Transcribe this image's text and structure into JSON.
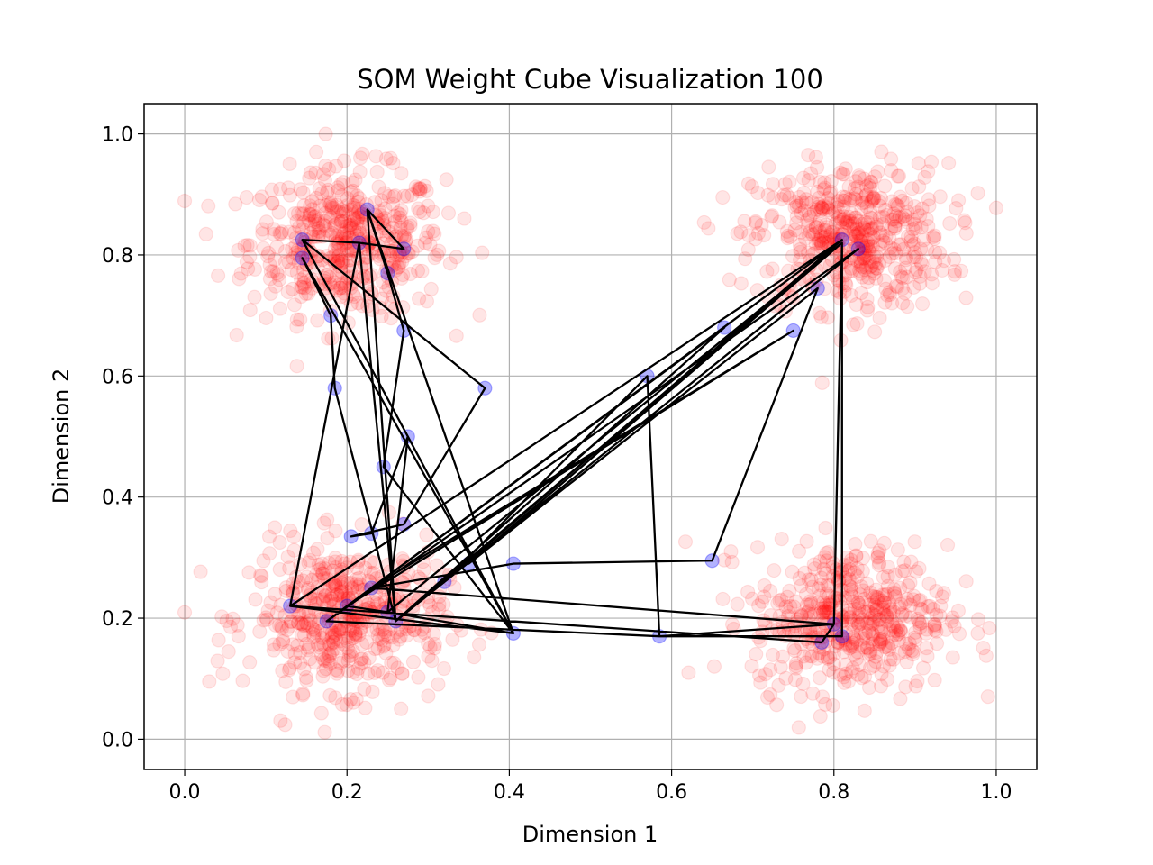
{
  "chart_data": {
    "type": "scatter",
    "title": "SOM Weight Cube Visualization 100",
    "xlabel": "Dimension 1",
    "ylabel": "Dimension 2",
    "xlim": [
      -0.05,
      1.05
    ],
    "ylim": [
      -0.05,
      1.05
    ],
    "xticks": [
      "0.0",
      "0.2",
      "0.4",
      "0.6",
      "0.8",
      "1.0"
    ],
    "yticks": [
      "0.0",
      "0.2",
      "0.4",
      "0.6",
      "0.8",
      "1.0"
    ],
    "grid": true,
    "colors": {
      "data": "#ff0000",
      "weights": "#0000ff",
      "connections": "#000000"
    },
    "data_clusters": [
      {
        "center": [
          0.2,
          0.82
        ],
        "spread": 0.06,
        "count": 500
      },
      {
        "center": [
          0.82,
          0.83
        ],
        "spread": 0.06,
        "count": 500
      },
      {
        "center": [
          0.2,
          0.2
        ],
        "spread": 0.06,
        "count": 500
      },
      {
        "center": [
          0.82,
          0.2
        ],
        "spread": 0.06,
        "count": 500
      }
    ],
    "weights": [
      [
        0.225,
        0.875
      ],
      [
        0.215,
        0.82
      ],
      [
        0.27,
        0.81
      ],
      [
        0.145,
        0.825
      ],
      [
        0.145,
        0.795
      ],
      [
        0.25,
        0.77
      ],
      [
        0.18,
        0.7
      ],
      [
        0.27,
        0.675
      ],
      [
        0.185,
        0.58
      ],
      [
        0.37,
        0.58
      ],
      [
        0.275,
        0.5
      ],
      [
        0.245,
        0.45
      ],
      [
        0.205,
        0.335
      ],
      [
        0.23,
        0.34
      ],
      [
        0.27,
        0.355
      ],
      [
        0.35,
        0.29
      ],
      [
        0.405,
        0.29
      ],
      [
        0.13,
        0.22
      ],
      [
        0.175,
        0.195
      ],
      [
        0.26,
        0.195
      ],
      [
        0.405,
        0.175
      ],
      [
        0.585,
        0.17
      ],
      [
        0.65,
        0.295
      ],
      [
        0.57,
        0.6
      ],
      [
        0.665,
        0.68
      ],
      [
        0.75,
        0.675
      ],
      [
        0.78,
        0.745
      ],
      [
        0.81,
        0.825
      ],
      [
        0.83,
        0.81
      ],
      [
        0.785,
        0.16
      ],
      [
        0.81,
        0.17
      ],
      [
        0.8,
        0.19
      ],
      [
        0.2,
        0.22
      ],
      [
        0.25,
        0.21
      ],
      [
        0.23,
        0.25
      ],
      [
        0.32,
        0.26
      ]
    ],
    "path": [
      [
        0.145,
        0.825
      ],
      [
        0.215,
        0.82
      ],
      [
        0.27,
        0.81
      ],
      [
        0.225,
        0.875
      ],
      [
        0.25,
        0.77
      ],
      [
        0.27,
        0.675
      ],
      [
        0.245,
        0.45
      ],
      [
        0.405,
        0.175
      ],
      [
        0.145,
        0.795
      ],
      [
        0.18,
        0.7
      ],
      [
        0.185,
        0.58
      ],
      [
        0.26,
        0.195
      ],
      [
        0.215,
        0.82
      ],
      [
        0.13,
        0.22
      ],
      [
        0.81,
        0.825
      ],
      [
        0.175,
        0.195
      ],
      [
        0.83,
        0.81
      ],
      [
        0.26,
        0.195
      ],
      [
        0.81,
        0.82
      ],
      [
        0.8,
        0.19
      ],
      [
        0.785,
        0.16
      ],
      [
        0.13,
        0.22
      ],
      [
        0.405,
        0.175
      ],
      [
        0.25,
        0.21
      ],
      [
        0.275,
        0.5
      ],
      [
        0.23,
        0.34
      ],
      [
        0.205,
        0.335
      ],
      [
        0.27,
        0.355
      ],
      [
        0.37,
        0.58
      ],
      [
        0.145,
        0.825
      ],
      [
        0.405,
        0.175
      ],
      [
        0.225,
        0.875
      ],
      [
        0.26,
        0.195
      ],
      [
        0.665,
        0.68
      ],
      [
        0.2,
        0.22
      ],
      [
        0.75,
        0.675
      ],
      [
        0.23,
        0.25
      ],
      [
        0.81,
        0.825
      ],
      [
        0.32,
        0.26
      ],
      [
        0.57,
        0.6
      ],
      [
        0.585,
        0.17
      ],
      [
        0.81,
        0.17
      ],
      [
        0.81,
        0.82
      ],
      [
        0.35,
        0.29
      ],
      [
        0.78,
        0.745
      ],
      [
        0.65,
        0.295
      ],
      [
        0.405,
        0.29
      ],
      [
        0.23,
        0.25
      ],
      [
        0.8,
        0.19
      ],
      [
        0.585,
        0.17
      ],
      [
        0.175,
        0.195
      ],
      [
        0.2,
        0.22
      ],
      [
        0.25,
        0.21
      ],
      [
        0.81,
        0.82
      ]
    ]
  }
}
